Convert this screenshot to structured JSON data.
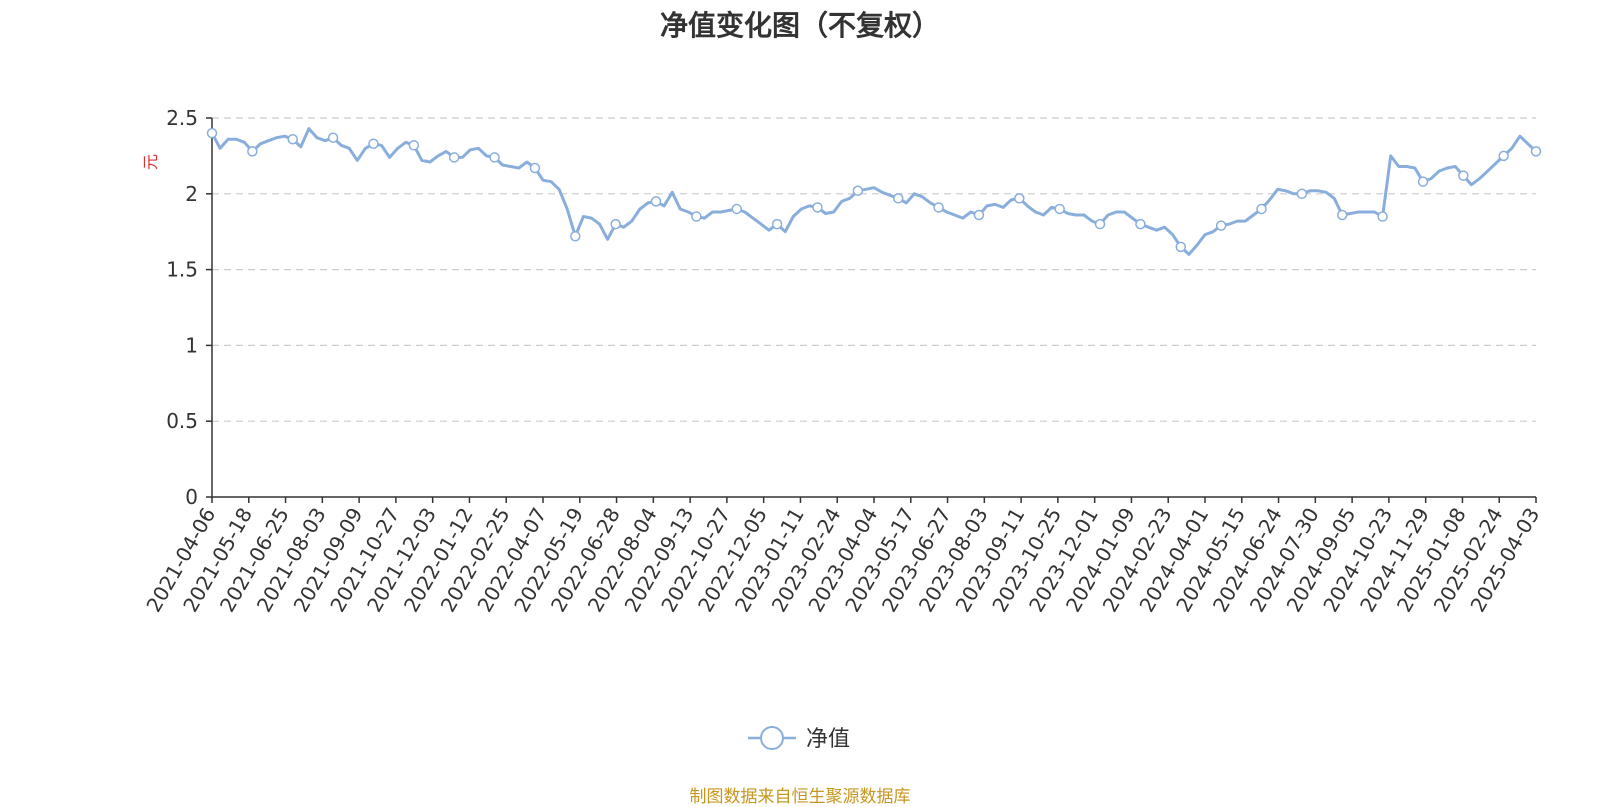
{
  "chart_data": {
    "type": "line",
    "title": "净值变化图（不复权）",
    "ylabel": "元",
    "ylim": [
      0,
      2.5
    ],
    "yticks": [
      "0",
      "0.5",
      "1",
      "1.5",
      "2",
      "2.5"
    ],
    "grid": true,
    "legend_position": "bottom-center",
    "source": "制图数据来自恒生聚源数据库",
    "x_tick_labels": [
      "2021-04-06",
      "2021-05-18",
      "2021-06-25",
      "2021-08-03",
      "2021-09-09",
      "2021-10-27",
      "2021-12-03",
      "2022-01-12",
      "2022-02-25",
      "2022-04-07",
      "2022-05-19",
      "2022-06-28",
      "2022-08-04",
      "2022-09-13",
      "2022-10-27",
      "2022-12-05",
      "2023-01-11",
      "2023-02-24",
      "2023-04-04",
      "2023-05-17",
      "2023-06-27",
      "2023-08-03",
      "2023-09-11",
      "2023-10-25",
      "2023-12-01",
      "2024-01-09",
      "2024-02-23",
      "2024-04-01",
      "2024-05-15",
      "2024-06-24",
      "2024-07-30",
      "2024-09-05",
      "2024-10-23",
      "2024-11-29",
      "2025-01-08",
      "2025-02-24",
      "2025-04-03"
    ],
    "series": [
      {
        "name": "净值",
        "color": "#8aaedc",
        "values": [
          2.4,
          2.3,
          2.36,
          2.36,
          2.34,
          2.28,
          2.33,
          2.35,
          2.37,
          2.38,
          2.36,
          2.31,
          2.43,
          2.37,
          2.35,
          2.37,
          2.32,
          2.3,
          2.22,
          2.3,
          2.33,
          2.32,
          2.24,
          2.3,
          2.34,
          2.32,
          2.22,
          2.21,
          2.25,
          2.28,
          2.24,
          2.24,
          2.29,
          2.3,
          2.25,
          2.24,
          2.19,
          2.18,
          2.17,
          2.21,
          2.17,
          2.09,
          2.08,
          2.03,
          1.9,
          1.72,
          1.85,
          1.84,
          1.8,
          1.7,
          1.8,
          1.78,
          1.82,
          1.9,
          1.94,
          1.95,
          1.92,
          2.01,
          1.9,
          1.88,
          1.85,
          1.84,
          1.88,
          1.88,
          1.89,
          1.9,
          1.88,
          1.84,
          1.8,
          1.76,
          1.8,
          1.75,
          1.85,
          1.9,
          1.92,
          1.91,
          1.87,
          1.88,
          1.95,
          1.97,
          2.02,
          2.03,
          2.04,
          2.01,
          1.99,
          1.97,
          1.94,
          2.0,
          1.98,
          1.94,
          1.91,
          1.88,
          1.86,
          1.84,
          1.88,
          1.86,
          1.92,
          1.93,
          1.91,
          1.96,
          1.97,
          1.92,
          1.88,
          1.86,
          1.91,
          1.9,
          1.87,
          1.86,
          1.86,
          1.82,
          1.8,
          1.86,
          1.88,
          1.88,
          1.84,
          1.8,
          1.78,
          1.76,
          1.78,
          1.73,
          1.65,
          1.6,
          1.66,
          1.73,
          1.75,
          1.79,
          1.8,
          1.82,
          1.82,
          1.86,
          1.9,
          1.96,
          2.03,
          2.02,
          2.0,
          2.0,
          2.02,
          2.02,
          2.01,
          1.97,
          1.86,
          1.87,
          1.88,
          1.88,
          1.88,
          1.85,
          2.25,
          2.18,
          2.18,
          2.17,
          2.08,
          2.1,
          2.15,
          2.17,
          2.18,
          2.12,
          2.06,
          2.1,
          2.15,
          2.2,
          2.25,
          2.3,
          2.38,
          2.33,
          2.28
        ]
      }
    ]
  }
}
